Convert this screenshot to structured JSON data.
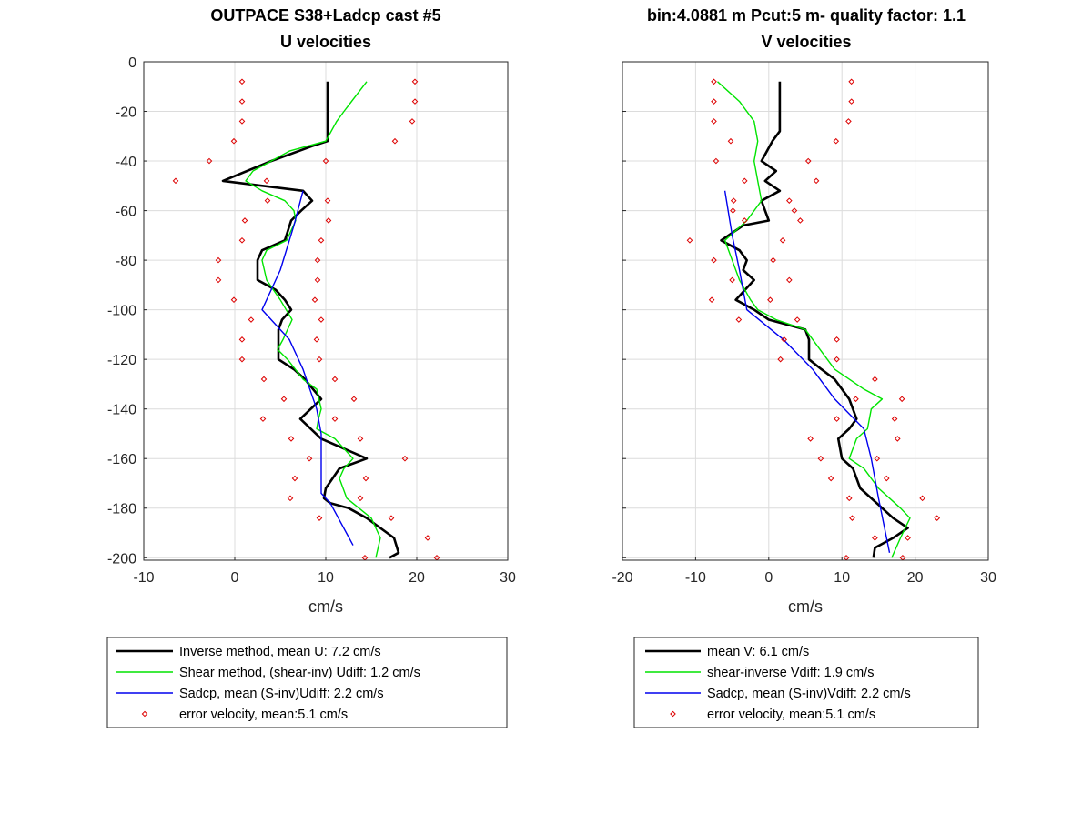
{
  "chart_data": [
    {
      "type": "line",
      "title": "OUTPACE S38+Ladcp cast #5",
      "subtitle": "U velocities",
      "xlabel": "cm/s",
      "ylabel": "",
      "xlim": [
        -10,
        30
      ],
      "ylim": [
        -201,
        0
      ],
      "xticks": [
        -10,
        0,
        10,
        20,
        30
      ],
      "yticks": [
        0,
        -20,
        -40,
        -60,
        -80,
        -100,
        -120,
        -140,
        -160,
        -180,
        -200
      ],
      "grid": true,
      "legend_position": "below",
      "series": [
        {
          "name": "Inverse method, mean U:  7.2 cm/s",
          "color": "#000000",
          "marker": "none",
          "points": [
            [
              10.2,
              -8
            ],
            [
              10.2,
              -32
            ],
            [
              8.5,
              -34
            ],
            [
              4,
              -40
            ],
            [
              -1.3,
              -48
            ],
            [
              7.5,
              -52
            ],
            [
              8.5,
              -56
            ],
            [
              7.3,
              -60
            ],
            [
              6.2,
              -64
            ],
            [
              5.5,
              -72
            ],
            [
              3,
              -76
            ],
            [
              2.5,
              -80
            ],
            [
              2.5,
              -88
            ],
            [
              4.5,
              -92
            ],
            [
              5.5,
              -96
            ],
            [
              6.2,
              -100
            ],
            [
              5.2,
              -104
            ],
            [
              4.8,
              -108
            ],
            [
              4.8,
              -120
            ],
            [
              6.5,
              -124
            ],
            [
              7.7,
              -128
            ],
            [
              9.5,
              -136
            ],
            [
              7.2,
              -144
            ],
            [
              9.5,
              -152
            ],
            [
              14.5,
              -160
            ],
            [
              11.5,
              -164
            ],
            [
              10,
              -172
            ],
            [
              9.8,
              -176
            ],
            [
              10.5,
              -178
            ],
            [
              12.5,
              -180
            ],
            [
              14.5,
              -184
            ],
            [
              17.5,
              -192
            ],
            [
              18,
              -198
            ],
            [
              17,
              -200
            ]
          ]
        },
        {
          "name": "Shear method, (shear-inv)  Udiff:  1.2 cm/s",
          "color": "#00e400",
          "marker": "none",
          "points": [
            [
              14.5,
              -8
            ],
            [
              12,
              -20
            ],
            [
              11.2,
              -24
            ],
            [
              10,
              -32
            ],
            [
              6,
              -36
            ],
            [
              4,
              -40
            ],
            [
              2,
              -44
            ],
            [
              1.2,
              -48
            ],
            [
              3,
              -52
            ],
            [
              5.5,
              -56
            ],
            [
              6.5,
              -60
            ],
            [
              6.7,
              -64
            ],
            [
              5.7,
              -72
            ],
            [
              3.5,
              -76
            ],
            [
              3,
              -80
            ],
            [
              3.5,
              -88
            ],
            [
              5,
              -96
            ],
            [
              6.3,
              -104
            ],
            [
              5.3,
              -112
            ],
            [
              4.7,
              -116
            ],
            [
              5.8,
              -120
            ],
            [
              7.5,
              -128
            ],
            [
              9,
              -132
            ],
            [
              9.5,
              -140
            ],
            [
              9.2,
              -144
            ],
            [
              9,
              -148
            ],
            [
              11,
              -152
            ],
            [
              13,
              -160
            ],
            [
              12,
              -164
            ],
            [
              11.5,
              -168
            ],
            [
              12.3,
              -176
            ],
            [
              15,
              -184
            ],
            [
              16,
              -192
            ],
            [
              15.5,
              -200
            ]
          ]
        },
        {
          "name": "Sadcp, mean (S-inv)Udiff: 2.2 cm/s",
          "color": "#0000ee",
          "marker": "none",
          "points": [
            [
              7.5,
              -52
            ],
            [
              6.5,
              -66
            ],
            [
              5,
              -84
            ],
            [
              3,
              -100
            ],
            [
              6,
              -112
            ],
            [
              7.5,
              -124
            ],
            [
              9,
              -140
            ],
            [
              9.5,
              -150
            ],
            [
              9.5,
              -160
            ],
            [
              9.5,
              -174
            ],
            [
              10.5,
              -178
            ],
            [
              13,
              -195
            ]
          ]
        },
        {
          "name": "error velocity, mean:5.1 cm/s",
          "color": "#dd0000",
          "marker": "diamond-open",
          "points": [
            [
              0.8,
              -8
            ],
            [
              19.8,
              -8
            ],
            [
              0.8,
              -16
            ],
            [
              19.8,
              -16
            ],
            [
              0.8,
              -24
            ],
            [
              19.5,
              -24
            ],
            [
              -0.1,
              -32
            ],
            [
              17.6,
              -32
            ],
            [
              -2.8,
              -40
            ],
            [
              10,
              -40
            ],
            [
              -6.5,
              -48
            ],
            [
              3.5,
              -48
            ],
            [
              10.2,
              -56
            ],
            [
              3.6,
              -56
            ],
            [
              1.1,
              -64
            ],
            [
              10.3,
              -64
            ],
            [
              0.8,
              -72
            ],
            [
              9.5,
              -72
            ],
            [
              -1.8,
              -80
            ],
            [
              9.1,
              -80
            ],
            [
              -1.8,
              -88
            ],
            [
              9.1,
              -88
            ],
            [
              -0.1,
              -96
            ],
            [
              8.8,
              -96
            ],
            [
              1.8,
              -104
            ],
            [
              9.5,
              -104
            ],
            [
              0.8,
              -112
            ],
            [
              9,
              -112
            ],
            [
              0.8,
              -120
            ],
            [
              9.3,
              -120
            ],
            [
              3.2,
              -128
            ],
            [
              11,
              -128
            ],
            [
              5.4,
              -136
            ],
            [
              13.1,
              -136
            ],
            [
              3.1,
              -144
            ],
            [
              11,
              -144
            ],
            [
              6.2,
              -152
            ],
            [
              13.8,
              -152
            ],
            [
              8.2,
              -160
            ],
            [
              18.7,
              -160
            ],
            [
              6.6,
              -168
            ],
            [
              14.4,
              -168
            ],
            [
              6.1,
              -176
            ],
            [
              13.8,
              -176
            ],
            [
              9.3,
              -184
            ],
            [
              17.2,
              -184
            ],
            [
              21.2,
              -192
            ],
            [
              14.3,
              -200
            ],
            [
              22.2,
              -200
            ]
          ]
        }
      ]
    },
    {
      "type": "line",
      "title": "bin:4.0881 m  Pcut:5 m- quality factor:  1.1",
      "subtitle": "V velocities",
      "xlabel": "cm/s",
      "ylabel": "",
      "xlim": [
        -20,
        30
      ],
      "ylim": [
        -201,
        0
      ],
      "xticks": [
        -20,
        -10,
        0,
        10,
        20,
        30
      ],
      "yticks": [
        0,
        -20,
        -40,
        -60,
        -80,
        -100,
        -120,
        -140,
        -160,
        -180,
        -200
      ],
      "grid": true,
      "legend_position": "below",
      "series": [
        {
          "name": "mean V:  6.1 cm/s",
          "color": "#000000",
          "marker": "none",
          "points": [
            [
              1.5,
              -8
            ],
            [
              1.5,
              -28
            ],
            [
              0.5,
              -32
            ],
            [
              -1,
              -40
            ],
            [
              1,
              -44
            ],
            [
              -0.5,
              -48
            ],
            [
              1.5,
              -52
            ],
            [
              -1,
              -56
            ],
            [
              0,
              -64
            ],
            [
              -3.5,
              -66
            ],
            [
              -6.5,
              -72
            ],
            [
              -4,
              -76
            ],
            [
              -3,
              -80
            ],
            [
              -3.5,
              -84
            ],
            [
              -2,
              -88
            ],
            [
              -4.5,
              -96
            ],
            [
              -2,
              -100
            ],
            [
              0,
              -104
            ],
            [
              5,
              -108
            ],
            [
              5.5,
              -112
            ],
            [
              5.5,
              -120
            ],
            [
              7.2,
              -124
            ],
            [
              9,
              -128
            ],
            [
              11,
              -136
            ],
            [
              12,
              -144
            ],
            [
              11,
              -148
            ],
            [
              9.5,
              -152
            ],
            [
              10,
              -160
            ],
            [
              11.5,
              -164
            ],
            [
              12.5,
              -172
            ],
            [
              15.5,
              -180
            ],
            [
              17,
              -184
            ],
            [
              19,
              -188
            ],
            [
              17,
              -192
            ],
            [
              14.5,
              -196
            ],
            [
              14.3,
              -200
            ]
          ]
        },
        {
          "name": "shear-inverse Vdiff:  1.9 cm/s",
          "color": "#00e400",
          "marker": "none",
          "points": [
            [
              -7,
              -8
            ],
            [
              -4,
              -16
            ],
            [
              -2,
              -24
            ],
            [
              -1.5,
              -32
            ],
            [
              -2,
              -40
            ],
            [
              -1.5,
              -48
            ],
            [
              -1,
              -56
            ],
            [
              -3,
              -64
            ],
            [
              -6,
              -72
            ],
            [
              -5,
              -80
            ],
            [
              -4,
              -88
            ],
            [
              -2.5,
              -96
            ],
            [
              -1.5,
              -100
            ],
            [
              1,
              -104
            ],
            [
              5,
              -108
            ],
            [
              7,
              -116
            ],
            [
              9,
              -124
            ],
            [
              13,
              -132
            ],
            [
              15.5,
              -136
            ],
            [
              14,
              -140
            ],
            [
              13.5,
              -148
            ],
            [
              12,
              -152
            ],
            [
              11,
              -160
            ],
            [
              13,
              -164
            ],
            [
              15,
              -172
            ],
            [
              18,
              -180
            ],
            [
              19.3,
              -184
            ],
            [
              18,
              -192
            ],
            [
              16.8,
              -200
            ]
          ]
        },
        {
          "name": "Sadcp, mean (S-inv)Vdiff: 2.2 cm/s",
          "color": "#0000ee",
          "marker": "none",
          "points": [
            [
              -6,
              -52
            ],
            [
              -5,
              -70
            ],
            [
              -4,
              -84
            ],
            [
              -3,
              -100
            ],
            [
              2,
              -112
            ],
            [
              6,
              -124
            ],
            [
              9,
              -136
            ],
            [
              13,
              -148
            ],
            [
              14,
              -160
            ],
            [
              15,
              -176
            ],
            [
              16.5,
              -198
            ]
          ]
        },
        {
          "name": "error velocity, mean:5.1 cm/s",
          "color": "#dd0000",
          "marker": "diamond-open",
          "points": [
            [
              -7.5,
              -8
            ],
            [
              11.3,
              -8
            ],
            [
              -7.5,
              -16
            ],
            [
              11.3,
              -16
            ],
            [
              -7.5,
              -24
            ],
            [
              10.9,
              -24
            ],
            [
              -5.2,
              -32
            ],
            [
              9.2,
              -32
            ],
            [
              -7.2,
              -40
            ],
            [
              5.4,
              -40
            ],
            [
              -3.3,
              -48
            ],
            [
              6.5,
              -48
            ],
            [
              -4.8,
              -56
            ],
            [
              2.8,
              -56
            ],
            [
              -4.9,
              -60
            ],
            [
              3.5,
              -60
            ],
            [
              -3.3,
              -64
            ],
            [
              4.3,
              -64
            ],
            [
              -10.8,
              -72
            ],
            [
              1.9,
              -72
            ],
            [
              -7.5,
              -80
            ],
            [
              0.6,
              -80
            ],
            [
              -5,
              -88
            ],
            [
              2.8,
              -88
            ],
            [
              -7.8,
              -96
            ],
            [
              0.2,
              -96
            ],
            [
              -4.1,
              -104
            ],
            [
              3.9,
              -104
            ],
            [
              2.1,
              -112
            ],
            [
              9.3,
              -112
            ],
            [
              1.6,
              -120
            ],
            [
              9.3,
              -120
            ],
            [
              14.5,
              -128
            ],
            [
              18.2,
              -136
            ],
            [
              11.9,
              -136
            ],
            [
              17.2,
              -144
            ],
            [
              9.3,
              -144
            ],
            [
              17.6,
              -152
            ],
            [
              5.7,
              -152
            ],
            [
              7.1,
              -160
            ],
            [
              14.8,
              -160
            ],
            [
              8.5,
              -168
            ],
            [
              16.1,
              -168
            ],
            [
              11,
              -176
            ],
            [
              21,
              -176
            ],
            [
              11.4,
              -184
            ],
            [
              23,
              -184
            ],
            [
              14.5,
              -192
            ],
            [
              19,
              -192
            ],
            [
              10.6,
              -200
            ],
            [
              18.3,
              -200
            ]
          ]
        }
      ]
    }
  ]
}
